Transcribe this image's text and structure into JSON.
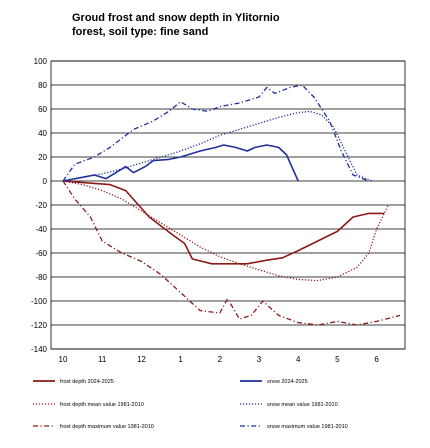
{
  "chart_data": {
    "type": "line",
    "title_lines": [
      "Groud frost and snow depth in Ylitornio",
      "forest, soil type: fine sand"
    ],
    "xlabel": "",
    "ylabel": "",
    "x_tick_labels": [
      "10",
      "11",
      "12",
      "1",
      "2",
      "3",
      "4",
      "5",
      "6"
    ],
    "ylim": [
      -140,
      100
    ],
    "y_ticks": [
      100,
      80,
      60,
      40,
      20,
      0,
      -20,
      -40,
      -60,
      -80,
      -100,
      -120,
      -140
    ],
    "grid": "horizontal",
    "legend_position": "bottom",
    "series": [
      {
        "name": "frost depth 2024-2025",
        "color": "#8b1a1a",
        "style": "solid",
        "points": [
          [
            0,
            0
          ],
          [
            0.8,
            -2
          ],
          [
            1.2,
            -3
          ],
          [
            1.6,
            -8
          ],
          [
            2.2,
            -30
          ],
          [
            2.8,
            -45
          ],
          [
            3.1,
            -52
          ],
          [
            3.3,
            -65
          ],
          [
            3.8,
            -69
          ],
          [
            4.3,
            -69
          ],
          [
            4.7,
            -69
          ],
          [
            5.2,
            -66
          ],
          [
            5.6,
            -64
          ],
          [
            6.0,
            -58
          ],
          [
            6.5,
            -50
          ],
          [
            7.0,
            -42
          ],
          [
            7.4,
            -30
          ],
          [
            7.8,
            -27
          ],
          [
            8.2,
            -27
          ]
        ]
      },
      {
        "name": "snow 2024-2025",
        "color": "#1f2f9a",
        "style": "solid",
        "points": [
          [
            0,
            0
          ],
          [
            0.8,
            5
          ],
          [
            1.1,
            2
          ],
          [
            1.3,
            6
          ],
          [
            1.6,
            12
          ],
          [
            1.8,
            7
          ],
          [
            2.1,
            12
          ],
          [
            2.3,
            17
          ],
          [
            2.7,
            18
          ],
          [
            3.0,
            20
          ],
          [
            3.5,
            25
          ],
          [
            3.9,
            28
          ],
          [
            4.1,
            30
          ],
          [
            4.4,
            28
          ],
          [
            4.7,
            25
          ],
          [
            4.9,
            28
          ],
          [
            5.2,
            30
          ],
          [
            5.5,
            28
          ],
          [
            5.7,
            22
          ],
          [
            6.0,
            0
          ]
        ]
      },
      {
        "name": "frost depth mean value 1981-2010",
        "color": "#8b1a1a",
        "style": "dotted",
        "points": [
          [
            0,
            0
          ],
          [
            0.5,
            -3
          ],
          [
            1.0,
            -8
          ],
          [
            1.5,
            -15
          ],
          [
            2.0,
            -25
          ],
          [
            2.5,
            -35
          ],
          [
            3.0,
            -45
          ],
          [
            3.5,
            -55
          ],
          [
            4.0,
            -63
          ],
          [
            4.5,
            -69
          ],
          [
            5.0,
            -74
          ],
          [
            5.5,
            -79
          ],
          [
            6.0,
            -82
          ],
          [
            6.5,
            -83
          ],
          [
            7.0,
            -80
          ],
          [
            7.5,
            -72
          ],
          [
            7.8,
            -60
          ],
          [
            8.0,
            -40
          ],
          [
            8.3,
            -20
          ]
        ]
      },
      {
        "name": "snow mean value 1981-2010",
        "color": "#1f2f9a",
        "style": "dotted",
        "points": [
          [
            0,
            0
          ],
          [
            0.5,
            3
          ],
          [
            1.0,
            6
          ],
          [
            1.5,
            10
          ],
          [
            2.0,
            15
          ],
          [
            2.5,
            20
          ],
          [
            3.0,
            25
          ],
          [
            3.5,
            31
          ],
          [
            4.0,
            38
          ],
          [
            4.5,
            43
          ],
          [
            5.0,
            48
          ],
          [
            5.5,
            53
          ],
          [
            6.0,
            57
          ],
          [
            6.3,
            58
          ],
          [
            6.6,
            55
          ],
          [
            6.9,
            45
          ],
          [
            7.2,
            25
          ],
          [
            7.5,
            5
          ],
          [
            7.9,
            0
          ]
        ]
      },
      {
        "name": "frost depth maximum value 1981-2010",
        "color": "#8b1a1a",
        "style": "dashdot",
        "points": [
          [
            0,
            0
          ],
          [
            0.3,
            -15
          ],
          [
            0.7,
            -30
          ],
          [
            1.0,
            -50
          ],
          [
            1.5,
            -60
          ],
          [
            2.0,
            -67
          ],
          [
            2.5,
            -78
          ],
          [
            3.0,
            -93
          ],
          [
            3.5,
            -108
          ],
          [
            4.0,
            -110
          ],
          [
            4.2,
            -98
          ],
          [
            4.5,
            -115
          ],
          [
            4.8,
            -112
          ],
          [
            5.1,
            -100
          ],
          [
            5.5,
            -112
          ],
          [
            6.0,
            -118
          ],
          [
            6.5,
            -120
          ],
          [
            7.0,
            -117
          ],
          [
            7.5,
            -120
          ],
          [
            8.0,
            -117
          ],
          [
            8.6,
            -112
          ]
        ]
      },
      {
        "name": "snow maximum value 1981-2010",
        "color": "#1f2f9a",
        "style": "dashdot",
        "points": [
          [
            0,
            0
          ],
          [
            0.3,
            14
          ],
          [
            0.8,
            20
          ],
          [
            1.2,
            28
          ],
          [
            1.8,
            43
          ],
          [
            2.3,
            50
          ],
          [
            2.7,
            58
          ],
          [
            3.0,
            66
          ],
          [
            3.3,
            60
          ],
          [
            3.7,
            58
          ],
          [
            4.0,
            62
          ],
          [
            4.5,
            65
          ],
          [
            5.0,
            70
          ],
          [
            5.2,
            78
          ],
          [
            5.4,
            73
          ],
          [
            5.8,
            78
          ],
          [
            6.1,
            80
          ],
          [
            6.4,
            70
          ],
          [
            6.8,
            50
          ],
          [
            7.1,
            25
          ],
          [
            7.4,
            5
          ],
          [
            7.8,
            0
          ]
        ]
      }
    ]
  }
}
